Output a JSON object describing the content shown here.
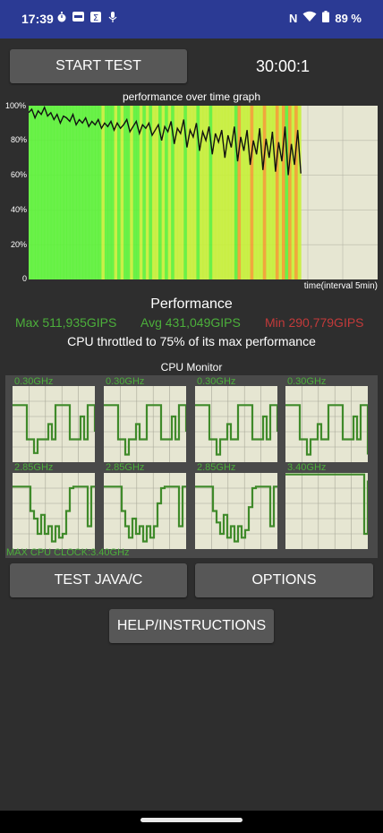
{
  "status_bar": {
    "time": "17:39",
    "left_icons": [
      "timer-icon",
      "app-icon",
      "sigma-icon",
      "mic-off-icon"
    ],
    "nfc_label": "N",
    "battery": "89 %"
  },
  "controls": {
    "start_label": "START TEST",
    "timer": "30:00:1"
  },
  "graph": {
    "title": "performance over time graph",
    "y_ticks": [
      "100%",
      "80%",
      "60%",
      "40%",
      "20%",
      "0"
    ],
    "x_note": "time(interval 5min)"
  },
  "chart_data": {
    "type": "line",
    "title": "performance over time graph",
    "xlabel": "time(interval 5min)",
    "ylabel": "",
    "ylim": [
      0,
      100
    ],
    "x_fraction_end": 0.78,
    "values": [
      96,
      98,
      93,
      97,
      95,
      99,
      94,
      96,
      92,
      95,
      90,
      94,
      93,
      91,
      95,
      89,
      92,
      90,
      93,
      88,
      91,
      89,
      92,
      87,
      90,
      88,
      91,
      86,
      90,
      87,
      89,
      92,
      85,
      88,
      91,
      84,
      89,
      87,
      90,
      83,
      86,
      89,
      80,
      88,
      85,
      91,
      78,
      87,
      84,
      92,
      76,
      86,
      82,
      90,
      74,
      85,
      80,
      88,
      72,
      84,
      79,
      86,
      70,
      83,
      76,
      88,
      68,
      82,
      74,
      86,
      66,
      80,
      72,
      87,
      63,
      81,
      70,
      85,
      62,
      79,
      68,
      88,
      60,
      78,
      66,
      86,
      61
    ],
    "colors": {
      "line": "#111111",
      "high": "#5cf23a",
      "mid": "#c6f03a",
      "low": "#f2a02e",
      "bg": "#e6e6d2"
    }
  },
  "performance": {
    "title": "Performance",
    "max": "Max 511,935GIPS",
    "avg": "Avg 431,049GIPS",
    "min": "Min 290,779GIPS",
    "throttle": "CPU throttled to 75% of its max performance",
    "colors": {
      "max": "#4caf3b",
      "avg": "#4caf3b",
      "min": "#c23a3a"
    }
  },
  "cpu_monitor": {
    "title": "CPU Monitor",
    "cores": [
      {
        "label": "0.30GHz",
        "levels": [
          0.75,
          0.75,
          0.75,
          0.75,
          0.3,
          0.3,
          0.12,
          0.3,
          0.3,
          0.3,
          0.5,
          0.3,
          0.75,
          0.75,
          0.75,
          0.75,
          0.3,
          0.3,
          0.3,
          0.6,
          0.3,
          0.75,
          0.75,
          0.4
        ]
      },
      {
        "label": "0.30GHz",
        "levels": [
          0.75,
          0.75,
          0.75,
          0.75,
          0.3,
          0.3,
          0.1,
          0.3,
          0.3,
          0.5,
          0.3,
          0.3,
          0.75,
          0.75,
          0.75,
          0.75,
          0.3,
          0.3,
          0.3,
          0.6,
          0.3,
          0.75,
          0.75,
          0.4
        ]
      },
      {
        "label": "0.30GHz",
        "levels": [
          0.75,
          0.75,
          0.75,
          0.75,
          0.3,
          0.3,
          0.1,
          0.3,
          0.3,
          0.5,
          0.3,
          0.3,
          0.75,
          0.75,
          0.75,
          0.75,
          0.3,
          0.3,
          0.3,
          0.6,
          0.3,
          0.75,
          0.75,
          0.4
        ]
      },
      {
        "label": "0.30GHz",
        "levels": [
          0.75,
          0.75,
          0.75,
          0.75,
          0.3,
          0.3,
          0.1,
          0.3,
          0.3,
          0.5,
          0.3,
          0.3,
          0.75,
          0.75,
          0.75,
          0.75,
          0.3,
          0.3,
          0.3,
          0.6,
          0.3,
          0.75,
          0.75,
          0.1
        ]
      },
      {
        "label": "2.85GHz",
        "levels": [
          0.82,
          0.82,
          0.82,
          0.82,
          0.82,
          0.5,
          0.4,
          0.2,
          0.45,
          0.2,
          0.3,
          0.1,
          0.3,
          0.15,
          0.2,
          0.5,
          0.8,
          0.82,
          0.82,
          0.82,
          0.82,
          0.3,
          0.82,
          0.82
        ]
      },
      {
        "label": "2.85GHz",
        "levels": [
          0.82,
          0.82,
          0.82,
          0.82,
          0.82,
          0.5,
          0.3,
          0.15,
          0.4,
          0.2,
          0.3,
          0.1,
          0.3,
          0.15,
          0.3,
          0.6,
          0.8,
          0.82,
          0.82,
          0.82,
          0.82,
          0.3,
          0.82,
          0.82
        ]
      },
      {
        "label": "2.85GHz",
        "levels": [
          0.82,
          0.82,
          0.82,
          0.82,
          0.82,
          0.5,
          0.35,
          0.2,
          0.45,
          0.15,
          0.3,
          0.1,
          0.3,
          0.15,
          0.25,
          0.55,
          0.8,
          0.82,
          0.82,
          0.82,
          0.82,
          0.3,
          0.82,
          0.82
        ]
      },
      {
        "label": "3.40GHz",
        "levels": [
          0.98,
          0.98,
          0.98,
          0.98,
          0.98,
          0.98,
          0.98,
          0.98,
          0.98,
          0.98,
          0.98,
          0.98,
          0.98,
          0.98,
          0.98,
          0.98,
          0.98,
          0.98,
          0.98,
          0.98,
          0.98,
          0.98,
          0.2,
          0.9
        ]
      }
    ],
    "max_clock": "MAX CPU CLOCK:3.40GHz",
    "line_color": "#3f8a2a"
  },
  "buttons": {
    "test_java": "TEST JAVA/C",
    "options": "OPTIONS",
    "help": "HELP/INSTRUCTIONS"
  }
}
